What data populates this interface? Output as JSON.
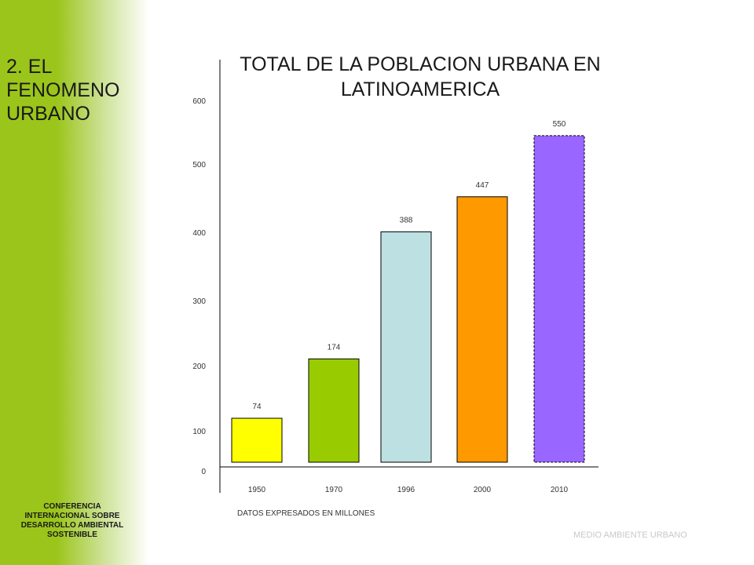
{
  "slide": {
    "section_title_lines": [
      "2. EL",
      "FENOMENO",
      "URBANO"
    ],
    "conference_lines": [
      "CONFERENCIA",
      "INTERNACIONAL SOBRE",
      "DESARROLLO AMBIENTAL",
      "SOSTENIBLE"
    ],
    "footer_right": "MEDIO AMBIENTE URBANO",
    "sidebar_color": "#9bc51a"
  },
  "chart_data": {
    "type": "bar",
    "title_lines": [
      "TOTAL DE LA POBLACION URBANA EN",
      "LATINOAMERICA"
    ],
    "categories": [
      "1950",
      "1970",
      "1996",
      "2000",
      "2010"
    ],
    "values": [
      74,
      174,
      388,
      447,
      550
    ],
    "colors": [
      "#ffff00",
      "#99cc00",
      "#bde0e2",
      "#ff9900",
      "#9966ff"
    ],
    "y_ticks": [
      0,
      100,
      200,
      300,
      400,
      500,
      600
    ],
    "ylim": [
      0,
      600
    ],
    "note": "DATOS EXPRESADOS EN MILLONES",
    "grid": false,
    "legend": "none"
  }
}
